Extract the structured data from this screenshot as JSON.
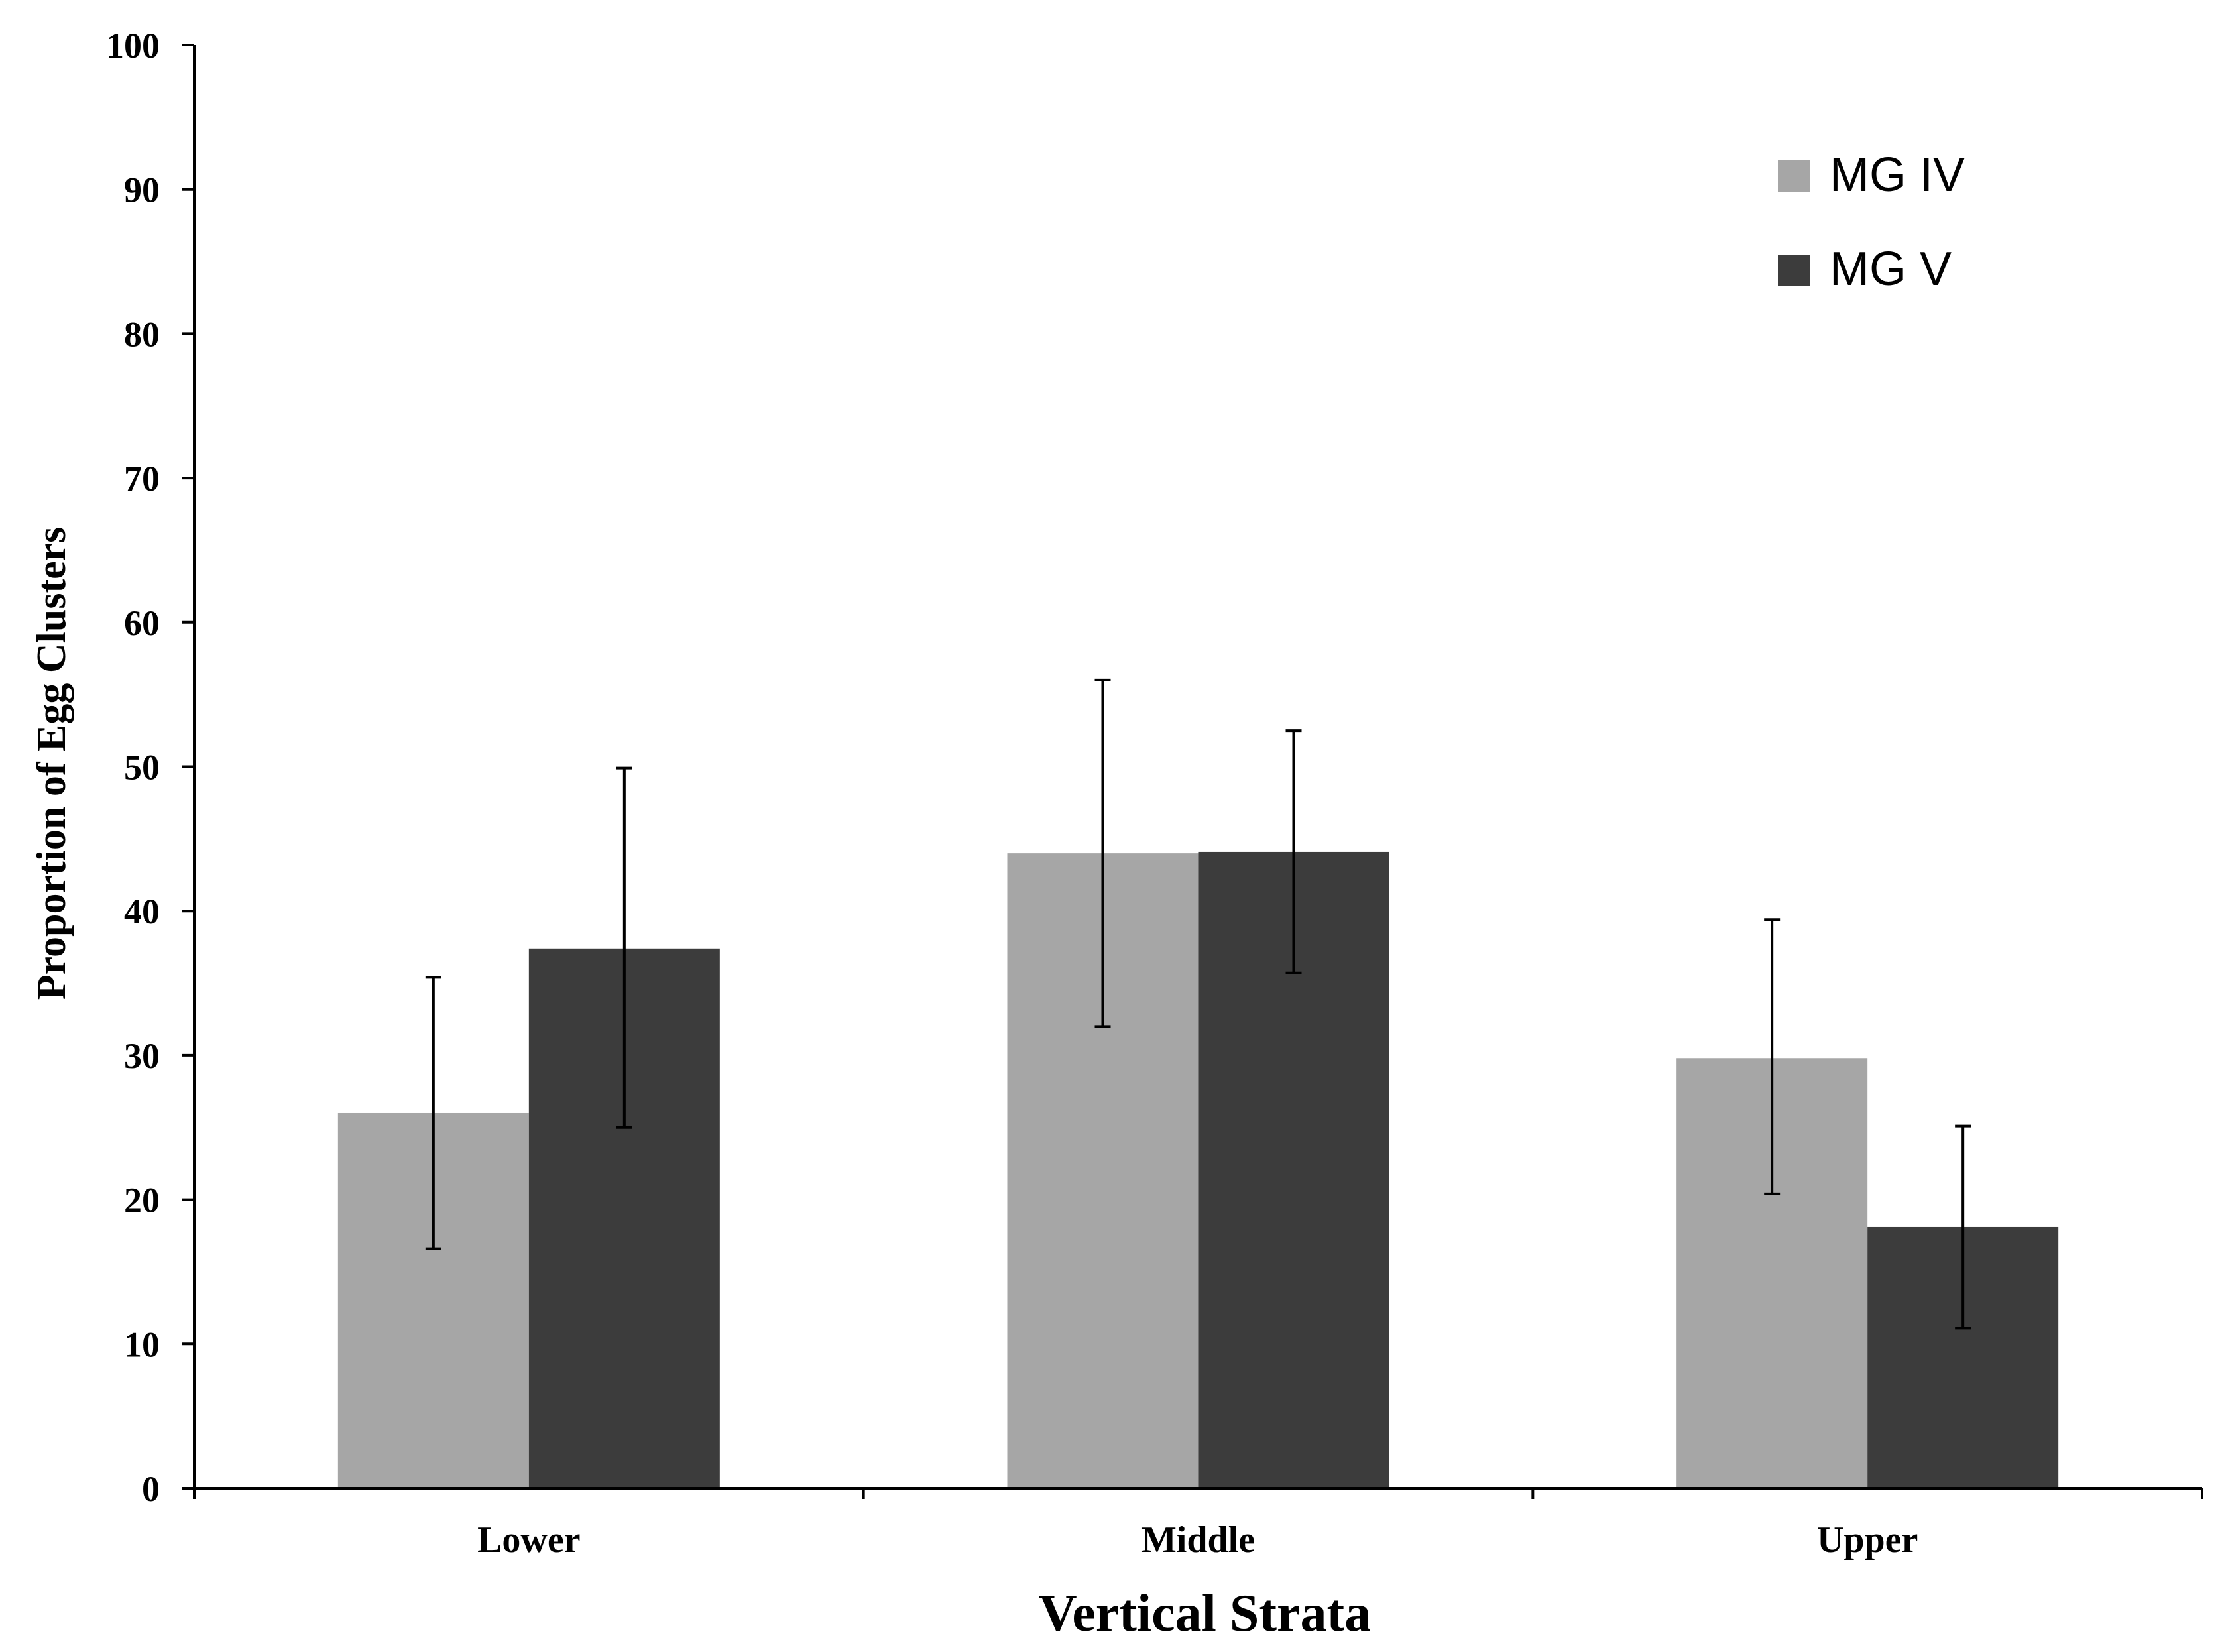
{
  "chart_data": {
    "type": "bar",
    "title": "",
    "xlabel": "Vertical Strata",
    "ylabel": "Proportion of Egg Clusters",
    "categories": [
      "Lower",
      "Middle",
      "Upper"
    ],
    "ylim": [
      0,
      100
    ],
    "yticks": [
      0,
      10,
      20,
      30,
      40,
      50,
      60,
      70,
      80,
      90,
      100
    ],
    "grid": false,
    "legend_position": "top-right",
    "series": [
      {
        "name": "MG IV",
        "color": "#a6a6a6",
        "values": [
          26.0,
          44.0,
          29.8
        ],
        "error_low": [
          16.6,
          32.0,
          20.4
        ],
        "error_high": [
          35.4,
          56.0,
          39.4
        ]
      },
      {
        "name": "MG V",
        "color": "#3c3c3c",
        "values": [
          37.4,
          44.1,
          18.1
        ],
        "error_low": [
          25.0,
          35.7,
          11.1
        ],
        "error_high": [
          49.9,
          52.5,
          25.1
        ]
      }
    ]
  }
}
